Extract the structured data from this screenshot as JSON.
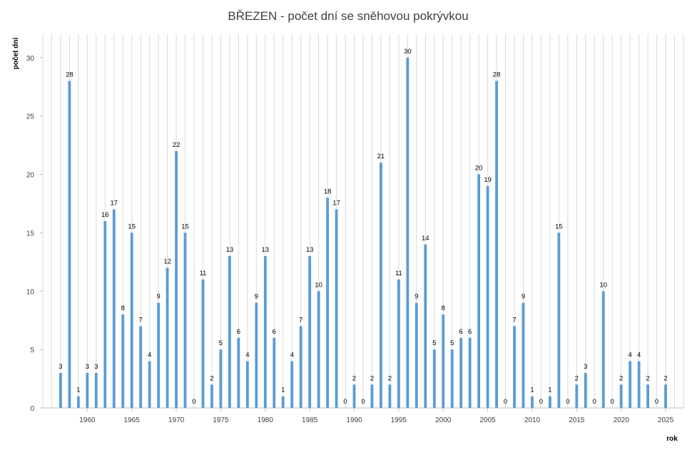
{
  "chart_data": {
    "type": "bar",
    "title": "BŘEZEN - počet dní se sněhovou pokrývkou",
    "xlabel": "rok",
    "ylabel": "počet dní",
    "ylim": [
      0,
      32
    ],
    "yticks": [
      0,
      5,
      10,
      15,
      20,
      25,
      30
    ],
    "xlim": [
      1955,
      2027
    ],
    "xticks": [
      1960,
      1965,
      1970,
      1975,
      1980,
      1985,
      1990,
      1995,
      2000,
      2005,
      2010,
      2015,
      2020,
      2025
    ],
    "grid": "vertical",
    "legend": "none",
    "color": "#5B9BD5",
    "x": [
      1957,
      1958,
      1959,
      1960,
      1961,
      1962,
      1963,
      1964,
      1965,
      1966,
      1967,
      1968,
      1969,
      1970,
      1971,
      1972,
      1973,
      1974,
      1975,
      1976,
      1977,
      1978,
      1979,
      1980,
      1981,
      1982,
      1983,
      1984,
      1985,
      1986,
      1987,
      1988,
      1989,
      1990,
      1991,
      1992,
      1993,
      1994,
      1995,
      1996,
      1997,
      1998,
      1999,
      2000,
      2001,
      2002,
      2003,
      2004,
      2005,
      2006,
      2007,
      2008,
      2009,
      2010,
      2011,
      2012,
      2013,
      2014,
      2015,
      2016,
      2017,
      2018,
      2019,
      2020,
      2021,
      2022,
      2023,
      2024,
      2025
    ],
    "values": [
      3,
      28,
      1,
      3,
      3,
      16,
      17,
      8,
      15,
      7,
      4,
      9,
      12,
      22,
      15,
      0,
      11,
      2,
      5,
      13,
      6,
      4,
      9,
      13,
      6,
      1,
      4,
      7,
      13,
      10,
      18,
      17,
      0,
      2,
      0,
      2,
      21,
      2,
      11,
      30,
      9,
      14,
      5,
      8,
      5,
      6,
      6,
      20,
      19,
      28,
      0,
      7,
      9,
      1,
      0,
      1,
      15,
      0,
      2,
      3,
      0,
      10,
      0,
      2,
      4,
      4,
      2,
      0,
      2
    ]
  }
}
